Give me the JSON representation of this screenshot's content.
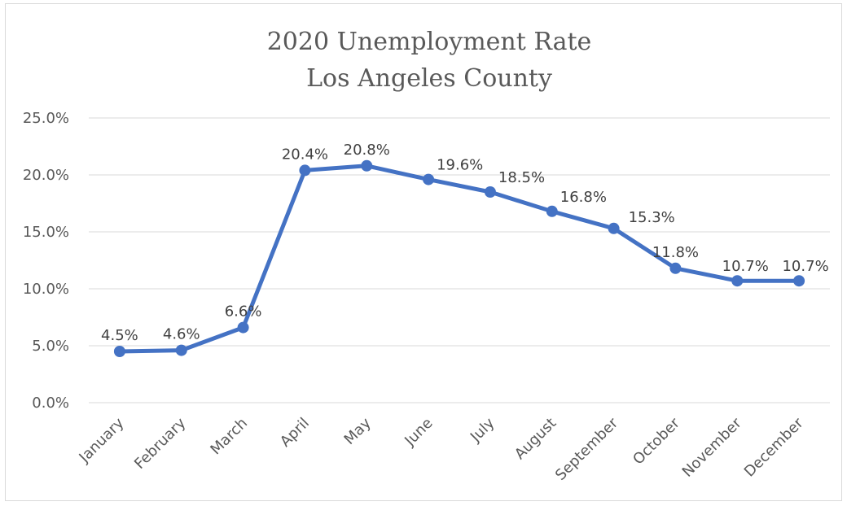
{
  "chart_data": {
    "type": "line",
    "title": [
      "2020 Unemployment Rate",
      "Los Angeles County"
    ],
    "xlabel": "",
    "ylabel": "",
    "categories": [
      "January",
      "February",
      "March",
      "April",
      "May",
      "June",
      "July",
      "August",
      "September",
      "October",
      "November",
      "December"
    ],
    "series": [
      {
        "values": [
          4.5,
          4.6,
          6.6,
          20.4,
          20.8,
          19.6,
          18.5,
          16.8,
          15.3,
          11.8,
          10.7,
          10.7
        ],
        "labels": [
          "4.5%",
          "4.6%",
          "6.6%",
          "20.4%",
          "20.8%",
          "19.6%",
          "18.5%",
          "16.8%",
          "15.3%",
          "11.8%",
          "10.7%",
          "10.7%"
        ],
        "color": "#4472c4"
      }
    ],
    "y_ticks": [
      "0.0%",
      "5.0%",
      "10.0%",
      "15.0%",
      "20.0%",
      "25.0%"
    ],
    "ylim": [
      0,
      25
    ],
    "grid": true,
    "legend": "none",
    "colors": {
      "line": "#4472c4",
      "grid": "#d9d9d9",
      "text": "#595959"
    }
  }
}
